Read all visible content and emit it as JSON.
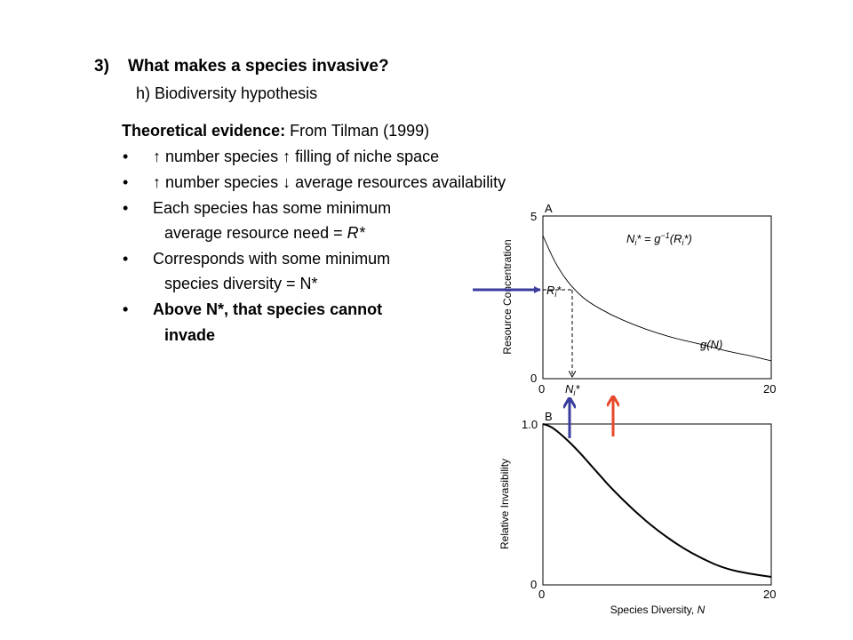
{
  "slide": {
    "heading_number": "3)",
    "heading_text": "What makes a species invasive?",
    "subheading": "h) Biodiversity hypothesis",
    "evidence_label": "Theoretical evidence:",
    "evidence_source": " From Tilman (1999)",
    "bullets": [
      {
        "dot": "•",
        "text": "↑ number species ↑ filling of niche space"
      },
      {
        "dot": "•",
        "text": "↑ number species ↓ average resources availability"
      },
      {
        "dot": "•",
        "text": "Each species has some minimum",
        "cont": "average resource need = ",
        "cont_italic": "R*"
      },
      {
        "dot": "•",
        "text": "Corresponds with some minimum",
        "cont": "species diversity = N*"
      },
      {
        "dot": "•",
        "text": "Above N*, that species cannot",
        "cont": "invade"
      }
    ]
  },
  "arrow_colors": {
    "blue": "#3a3d9c",
    "red": "#e8482a"
  },
  "chart_data": [
    {
      "type": "line",
      "panel_label": "A",
      "ylabel": "Resource Concentration",
      "xlabel": "",
      "xlim": [
        0,
        20
      ],
      "ylim": [
        0,
        5
      ],
      "yticks": [
        "0",
        "5"
      ],
      "xticks": [
        "0",
        "20"
      ],
      "series": [
        {
          "name": "g(N)",
          "x": [
            0,
            1,
            2,
            3,
            4,
            6,
            8,
            10,
            12,
            14,
            16,
            18,
            20
          ],
          "y": [
            4.4,
            3.6,
            3.05,
            2.65,
            2.35,
            1.95,
            1.65,
            1.4,
            1.2,
            1.05,
            0.85,
            0.72,
            0.55
          ]
        }
      ],
      "annotations": {
        "equation": "N_i* = g⁻¹(R_i*)",
        "curve_label": "g(N)",
        "r_star_label": "R_i*",
        "n_star_label": "N_i*",
        "r_star_value": 2.8,
        "n_star_value": 2.7
      }
    },
    {
      "type": "line",
      "panel_label": "B",
      "ylabel": "Relative Invasibility",
      "xlabel": "Species Diversity, N",
      "xlim": [
        0,
        20
      ],
      "ylim": [
        0,
        1
      ],
      "yticks": [
        "0",
        "1.0"
      ],
      "xticks": [
        "0",
        "20"
      ],
      "series": [
        {
          "name": "",
          "x": [
            0,
            0.5,
            1,
            2,
            3,
            4,
            5,
            6,
            8,
            10,
            12,
            14,
            16,
            18,
            20
          ],
          "y": [
            1.0,
            0.99,
            0.97,
            0.91,
            0.84,
            0.76,
            0.68,
            0.6,
            0.46,
            0.34,
            0.24,
            0.16,
            0.1,
            0.07,
            0.05
          ]
        }
      ]
    }
  ]
}
